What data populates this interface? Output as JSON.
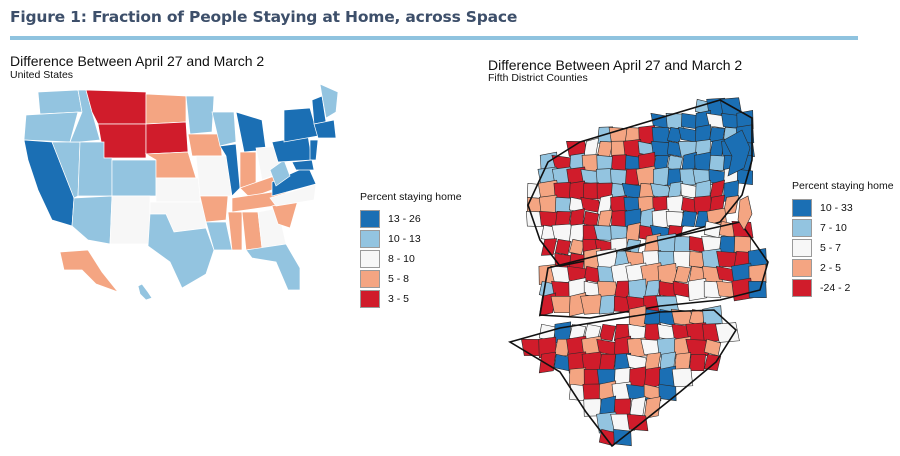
{
  "figure": {
    "title": "Figure 1: Fraction of People Staying at Home, across Space"
  },
  "colors": {
    "rule": "#8fc3df",
    "dark_blue": "#1b6fb4",
    "light_blue": "#93c4e0",
    "white": "#f7f7f7",
    "salmon": "#f4a582",
    "red": "#d01c2b"
  },
  "left_map": {
    "title": "Difference Between April 27 and March 2",
    "subtitle": "United States",
    "legend": {
      "title": "Percent staying home",
      "items": [
        {
          "label": "13 - 26",
          "color": "#1b6fb4"
        },
        {
          "label": "10 - 13",
          "color": "#93c4e0"
        },
        {
          "label": "8 - 10",
          "color": "#f7f7f7"
        },
        {
          "label": "5 - 8",
          "color": "#f4a582"
        },
        {
          "label": "3 - 5",
          "color": "#d01c2b"
        }
      ]
    }
  },
  "right_map": {
    "title": "Difference Between April 27 and March 2",
    "subtitle": "Fifth District Counties",
    "legend": {
      "title": "Percent staying home",
      "items": [
        {
          "label": "10 - 33",
          "color": "#1b6fb4"
        },
        {
          "label": "7 - 10",
          "color": "#93c4e0"
        },
        {
          "label": "5 - 7",
          "color": "#f7f7f7"
        },
        {
          "label": "2 - 5",
          "color": "#f4a582"
        },
        {
          "label": "-24 - 2",
          "color": "#d01c2b"
        }
      ]
    }
  }
}
